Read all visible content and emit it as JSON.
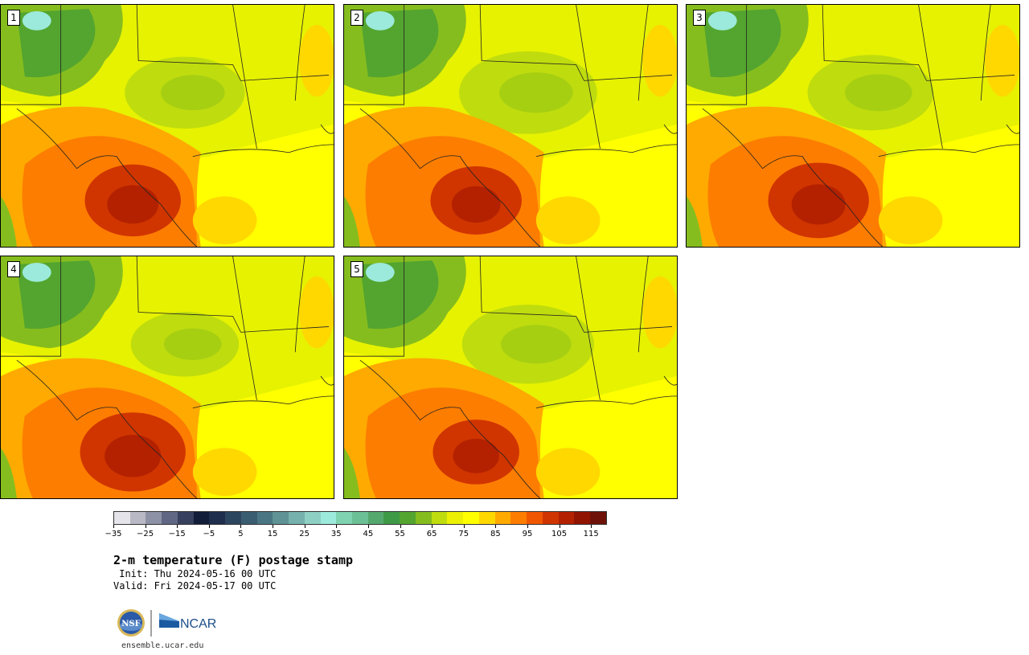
{
  "panels": [
    {
      "label": "1"
    },
    {
      "label": "2"
    },
    {
      "label": "3"
    },
    {
      "label": "4"
    },
    {
      "label": "5"
    }
  ],
  "colorbar": {
    "colors": [
      "#e4e4ea",
      "#b9b9c6",
      "#8e92a6",
      "#5f6784",
      "#37405e",
      "#121d3a",
      "#1e2e4c",
      "#2d4660",
      "#3a5d72",
      "#4a7684",
      "#5f9395",
      "#77b1ad",
      "#8fd0c4",
      "#9ceadb",
      "#7fd3b0",
      "#6bc095",
      "#55a96f",
      "#3f9a48",
      "#53a52f",
      "#86bd1e",
      "#bfdc0e",
      "#ecf104",
      "#ffff00",
      "#ffd800",
      "#ffaa00",
      "#fd7d00",
      "#f05600",
      "#d03500",
      "#b32100",
      "#901400",
      "#6e1209"
    ],
    "tick_labels": [
      "−35",
      "−25",
      "−15",
      "−5",
      "5",
      "15",
      "25",
      "35",
      "45",
      "55",
      "65",
      "75",
      "85",
      "95",
      "105",
      "115"
    ]
  },
  "title": "2-m temperature (F) postage stamp",
  "init": " Init: Thu 2024-05-16 00 UTC",
  "valid": "Valid: Fri 2024-05-17 00 UTC",
  "logo": {
    "nsf": "NSF",
    "ncar": "NCAR"
  },
  "footer_url": "ensemble.ucar.edu"
}
